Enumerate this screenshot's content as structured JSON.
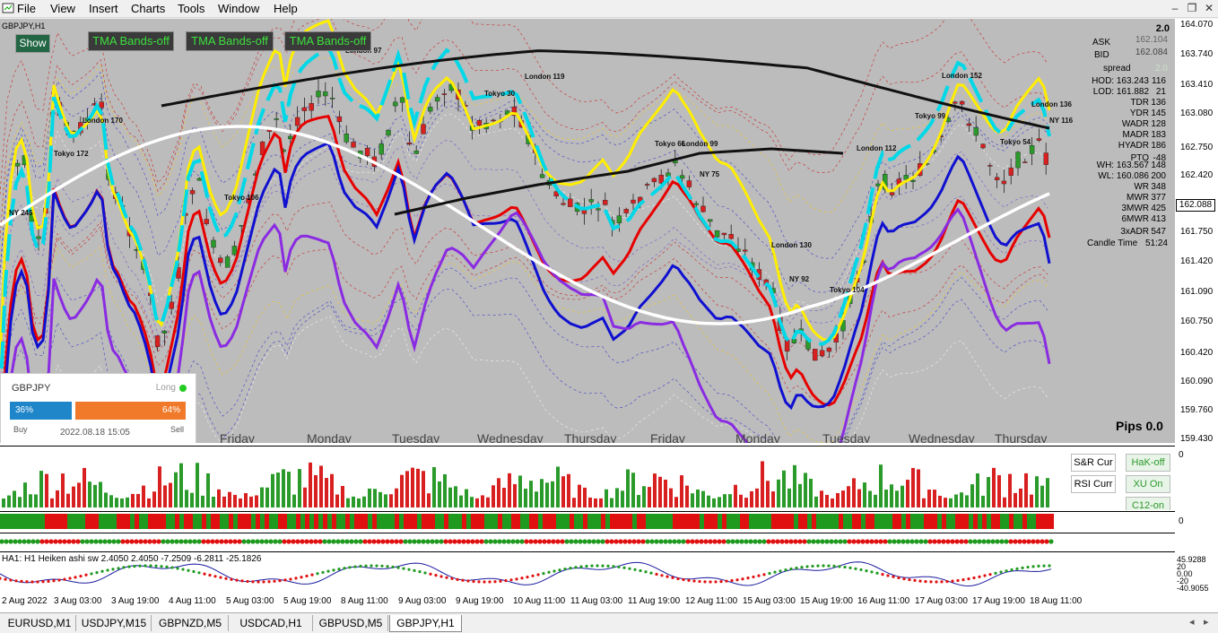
{
  "menu": {
    "items": [
      "File",
      "View",
      "Insert",
      "Charts",
      "Tools",
      "Window",
      "Help"
    ]
  },
  "chart": {
    "symbol_label": "GBPJPY,H1",
    "show_button": "Show",
    "tma_buttons": [
      "TMA Bands-off",
      "TMA Bands-off",
      "TMA Bands-off"
    ],
    "price_labels": [
      "164.070",
      "163.740",
      "163.410",
      "163.080",
      "162.750",
      "162.420",
      "161.750",
      "161.420",
      "161.090",
      "160.750",
      "160.420",
      "160.090",
      "159.760",
      "159.430"
    ],
    "current_price": "162.088",
    "pips_label": "Pips 0.0",
    "day_labels": [
      "Friday",
      "Monday",
      "Tuesday",
      "Wednesday",
      "Thursday",
      "Friday",
      "Monday",
      "Tuesday",
      "Wednesday",
      "Thursday"
    ],
    "session_labels": [
      "London 170",
      "Tokyo 106",
      "NY 245",
      "Tokyo 172",
      "London 97",
      "Tokyo 30",
      "London 119",
      "Tokyo 66",
      "London 99",
      "NY 75",
      "London 130",
      "NY 92",
      "Tokyo 104",
      "London 112",
      "Tokyo 99",
      "London 152",
      "NY 116",
      "Tokyo 54",
      "London 136"
    ]
  },
  "info": {
    "version": "2.0",
    "ask_label": "ASK",
    "ask": "162.104",
    "bid_label": "BID",
    "bid": "162.084",
    "spread_label": "spread",
    "spread": "2.0",
    "rows": [
      {
        "k": "HOD: 163.243",
        "v": "116"
      },
      {
        "k": "LOD: 161.882",
        "v": "21"
      },
      {
        "k": "TDR",
        "v": "136"
      },
      {
        "k": "YDR",
        "v": "145"
      },
      {
        "k": "WADR",
        "v": "128"
      },
      {
        "k": "MADR",
        "v": "183"
      },
      {
        "k": "HYADR",
        "v": "186"
      },
      {
        "k": "PTO",
        "v": "-48"
      },
      {
        "k": "WH: 163.567",
        "v": "148"
      },
      {
        "k": "WL: 160.086",
        "v": "200"
      },
      {
        "k": "WR",
        "v": "348"
      },
      {
        "k": "MWR",
        "v": "377"
      },
      {
        "k": "3MWR",
        "v": "425"
      },
      {
        "k": "6MWR",
        "v": "413"
      },
      {
        "k": "3xADR",
        "v": "547"
      }
    ],
    "candle_label": "Candle Time",
    "candle_time": "51:24"
  },
  "sentiment": {
    "pair": "GBPJPY",
    "direction": "Long",
    "buy_pct_label": "36%",
    "sell_pct_label": "64%",
    "buy_pct": 36,
    "buy_label": "Buy",
    "sell_label": "Sell",
    "timestamp": "2022.08.18 15:05"
  },
  "subwindows": {
    "buttons": [
      "S&R Cur",
      "HaK-off",
      "RSI Curr",
      "XU On",
      "C12-on"
    ],
    "axis_zero": "0",
    "ha_label": "HA1: H1 Heiken ashi sw 2.4050 2.4050 -7.2509 -6.2811 -25.1826",
    "ha_axis": [
      "45.9288",
      "20",
      "0.00",
      "-20",
      "-40.9055"
    ]
  },
  "dates": [
    "2 Aug 2022",
    "3 Aug 03:00",
    "3 Aug 19:00",
    "4 Aug 11:00",
    "5 Aug 03:00",
    "5 Aug 19:00",
    "8 Aug 11:00",
    "9 Aug 03:00",
    "9 Aug 19:00",
    "10 Aug 11:00",
    "11 Aug 03:00",
    "11 Aug 19:00",
    "12 Aug 11:00",
    "15 Aug 03:00",
    "15 Aug 19:00",
    "16 Aug 11:00",
    "17 Aug 03:00",
    "17 Aug 19:00",
    "18 Aug 11:00"
  ],
  "tabs": [
    "EURUSD,M1",
    "USDJPY,M15",
    "GBPNZD,M5",
    "USDCAD,H1",
    "GBPUSD,M5",
    "GBPJPY,H1"
  ],
  "colors": {
    "bull": "#2eaa2e",
    "bear": "#e02020",
    "plot_bg": "#bcbcbc"
  }
}
